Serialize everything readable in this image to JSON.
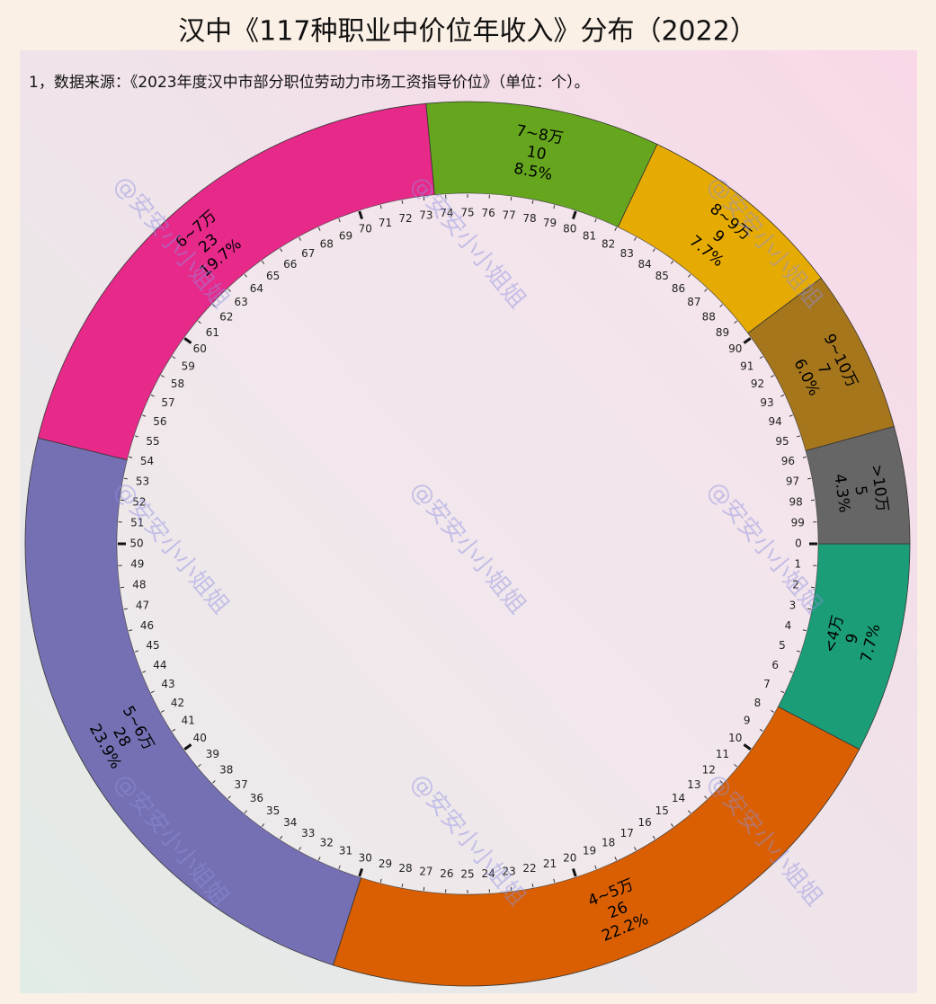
{
  "chart_data": {
    "type": "donut",
    "title": "汉中《117种职业中价位年收入》分布（2022）",
    "subtitle": "1，数据来源：《2023年度汉中市部分职位劳动力市场工资指导价位》（单位：个）。",
    "watermark": "@安安小小姐姐",
    "categories": [
      "<4万",
      "4~5万",
      "5~6万",
      "6~7万",
      "7~8万",
      "8~9万",
      "9~10万",
      ">10万"
    ],
    "values": [
      9,
      26,
      28,
      23,
      10,
      9,
      7,
      5
    ],
    "percent_labels": [
      "7.7%",
      "22.2%",
      "23.9%",
      "19.7%",
      "8.5%",
      "7.7%",
      "6.0%",
      "4.3%"
    ],
    "colors": [
      "#1b9e77",
      "#d95f02",
      "#7570b3",
      "#e7298a",
      "#66a61e",
      "#e6ab02",
      "#a6761d",
      "#666666"
    ],
    "rlim": [
      0,
      100
    ],
    "ticks": [
      0,
      1,
      2,
      3,
      4,
      5,
      6,
      7,
      8,
      9,
      10,
      11,
      12,
      13,
      14,
      15,
      16,
      17,
      18,
      19,
      20,
      21,
      22,
      23,
      24,
      25,
      26,
      27,
      28,
      29,
      30,
      31,
      32,
      33,
      34,
      35,
      36,
      37,
      38,
      39,
      40,
      41,
      42,
      43,
      44,
      45,
      46,
      47,
      48,
      49,
      50,
      51,
      52,
      53,
      54,
      55,
      56,
      57,
      58,
      59,
      60,
      61,
      62,
      63,
      64,
      65,
      66,
      67,
      68,
      69,
      70,
      71,
      72,
      73,
      74,
      75,
      76,
      77,
      78,
      79,
      80,
      81,
      82,
      83,
      84,
      85,
      86,
      87,
      88,
      89,
      90,
      91,
      92,
      93,
      94,
      95,
      96,
      97,
      98,
      99
    ],
    "major_ticks": [
      0,
      10,
      20,
      30,
      40,
      50,
      60,
      70,
      80,
      90
    ]
  }
}
